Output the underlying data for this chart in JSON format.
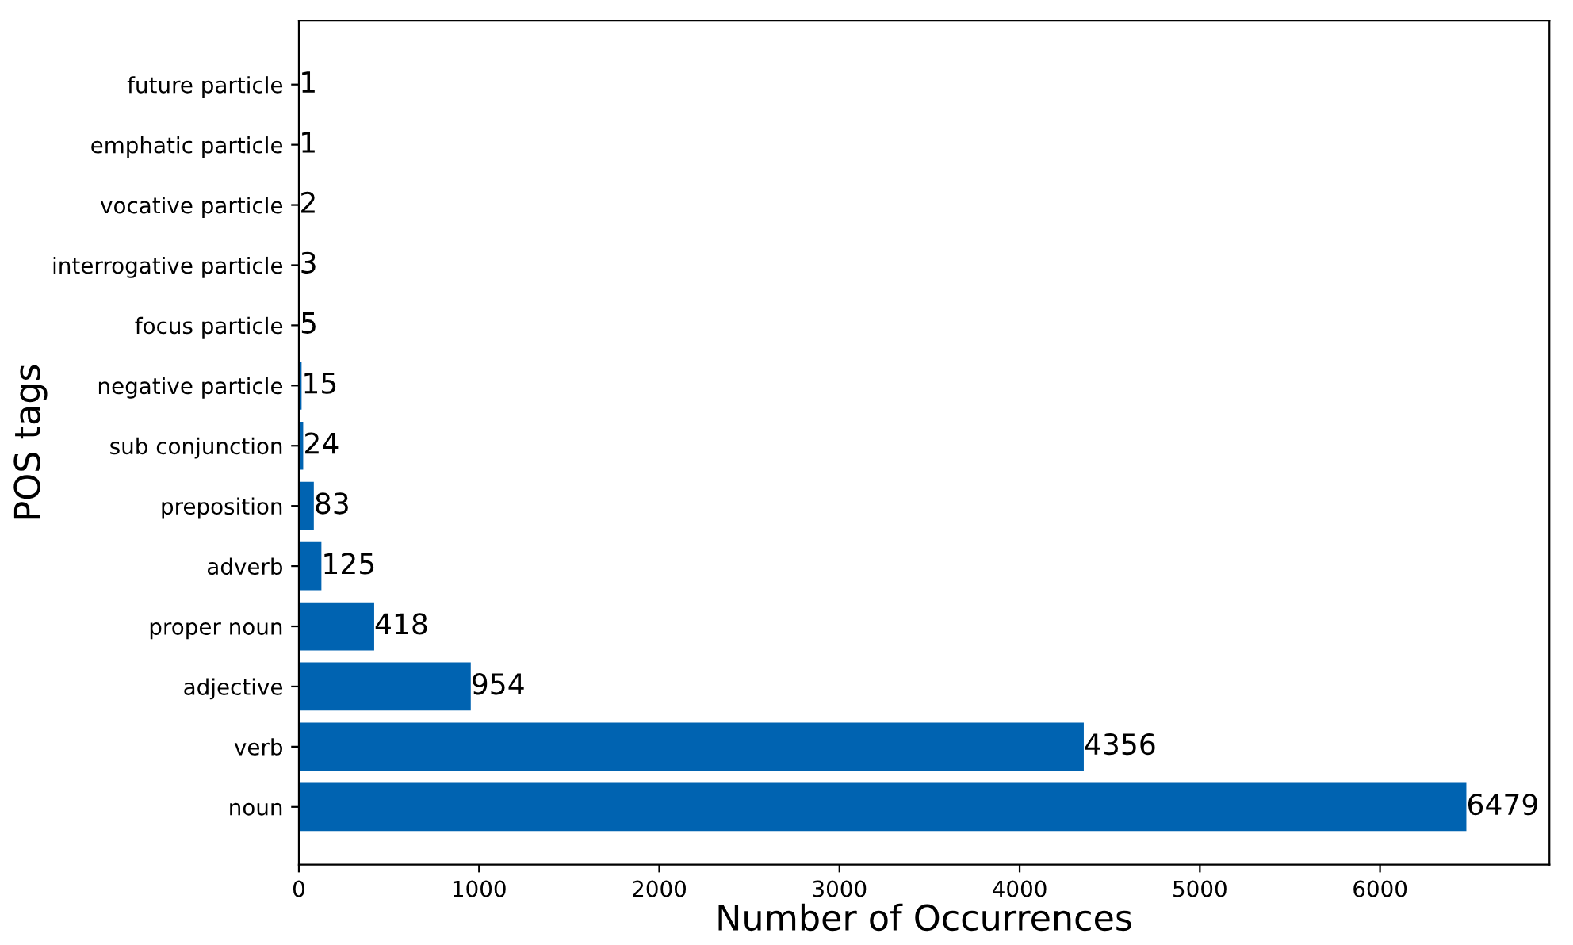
{
  "chart_data": {
    "type": "bar",
    "orientation": "horizontal",
    "xlabel": "Number of Occurrences",
    "ylabel": "POS tags",
    "categories": [
      "future particle",
      "emphatic particle",
      "vocative particle",
      "interrogative particle",
      "focus particle",
      "negative particle",
      "sub conjunction",
      "preposition",
      "adverb",
      "proper noun",
      "adjective",
      "verb",
      "noun"
    ],
    "values": [
      1,
      1,
      2,
      3,
      5,
      15,
      24,
      83,
      125,
      418,
      954,
      4356,
      6479
    ],
    "color": "#0063b1",
    "data_labels": true,
    "xlim": [
      0,
      6940
    ],
    "xticks": [
      0,
      1000,
      2000,
      3000,
      4000,
      5000,
      6000
    ],
    "grid": false,
    "legend": false
  }
}
